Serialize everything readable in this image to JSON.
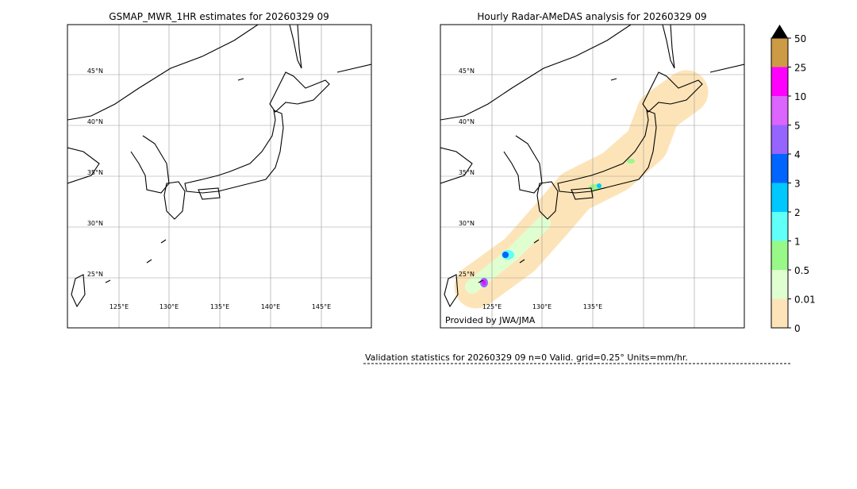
{
  "left_panel": {
    "title": "GSMAP_MWR_1HR estimates for 20260329 09",
    "lat_labels": [
      "45°N",
      "40°N",
      "35°N",
      "30°N",
      "25°N"
    ],
    "lon_labels": [
      "125°E",
      "130°E",
      "135°E",
      "140°E",
      "145°E"
    ]
  },
  "right_panel": {
    "title": "Hourly Radar-AMeDAS analysis for 20260329 09",
    "lat_labels": [
      "45°N",
      "40°N",
      "35°N",
      "30°N",
      "25°N"
    ],
    "lon_labels": [
      "125°E",
      "130°E",
      "135°E"
    ],
    "credit": "Provided by JWA/JMA"
  },
  "colorbar": {
    "levels": [
      0,
      0.01,
      0.5,
      1,
      2,
      3,
      4,
      5,
      10,
      25,
      50
    ],
    "colors": [
      "#fde4b8",
      "#e0ffd0",
      "#98f888",
      "#60fff8",
      "#00c8ff",
      "#0064ff",
      "#9664ff",
      "#dc64ff",
      "#ff00ff",
      "#cd9a46"
    ]
  },
  "validation": "Validation statistics for 20260329 09  n=0 Valid. grid=0.25° Units=mm/hr."
}
